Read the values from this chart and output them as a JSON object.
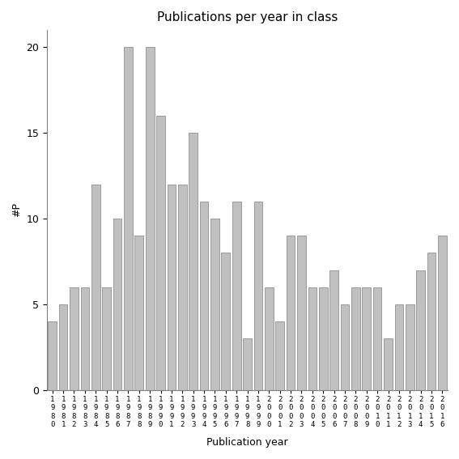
{
  "title": "Publications per year in class",
  "xlabel": "Publication year",
  "ylabel": "#P",
  "bar_color": "#c0c0c0",
  "bar_edge_color": "#808080",
  "background_color": "#ffffff",
  "ylim": [
    0,
    21
  ],
  "yticks": [
    0,
    5,
    10,
    15,
    20
  ],
  "years": [
    "1980",
    "1981",
    "1982",
    "1983",
    "1984",
    "1985",
    "1986",
    "1987",
    "1988",
    "1989",
    "1990",
    "1991",
    "1992",
    "1993",
    "1994",
    "1995",
    "1996",
    "1997",
    "1998",
    "1999",
    "2000",
    "2001",
    "2002",
    "2003",
    "2004",
    "2005",
    "2006",
    "2007",
    "2008",
    "2009",
    "2010",
    "2011",
    "2012",
    "2013",
    "2014",
    "2015",
    "2016"
  ],
  "values": [
    4,
    5,
    6,
    6,
    12,
    6,
    10,
    20,
    9,
    20,
    16,
    12,
    12,
    15,
    11,
    10,
    8,
    11,
    3,
    11,
    6,
    4,
    9,
    9,
    6,
    6,
    7,
    5,
    6,
    6,
    6,
    3,
    5,
    5,
    7,
    8,
    9
  ]
}
